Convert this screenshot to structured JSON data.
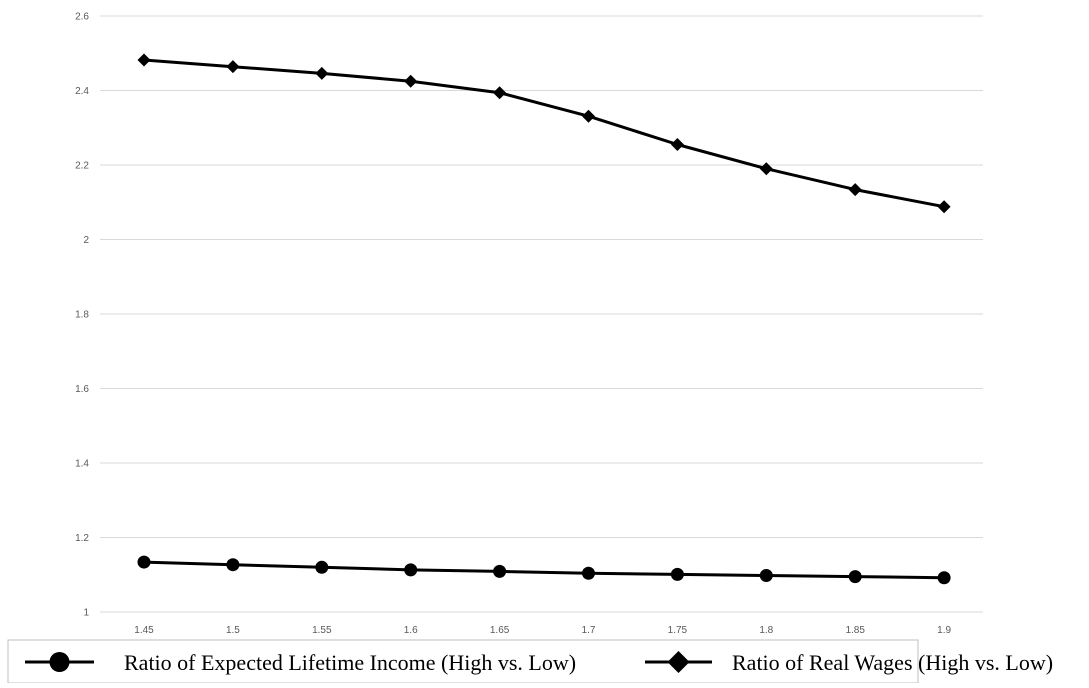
{
  "chart_data": {
    "type": "line",
    "title": "",
    "xlabel": "",
    "ylabel": "",
    "x": [
      1.45,
      1.5,
      1.55,
      1.6,
      1.65,
      1.7,
      1.75,
      1.8,
      1.85,
      1.9
    ],
    "x_tick_labels": [
      "1.45",
      "1.5",
      "1.55",
      "1.6",
      "1.65",
      "1.7",
      "1.75",
      "1.8",
      "1.85",
      "1.9"
    ],
    "ylim": [
      1,
      2.6
    ],
    "y_ticks": [
      1,
      1.2,
      1.4,
      1.6,
      1.8,
      2,
      2.2,
      2.4,
      2.6
    ],
    "y_tick_labels": [
      "1",
      "1.2",
      "1.4",
      "1.6",
      "1.8",
      "2",
      "2.2",
      "2.4",
      "2.6"
    ],
    "grid": true,
    "legend_position": "bottom",
    "series": [
      {
        "name": "Ratio of Expected Lifetime Income (High vs. Low)",
        "marker": "circle",
        "color": "#000000",
        "values": [
          1.134,
          1.127,
          1.12,
          1.113,
          1.109,
          1.104,
          1.101,
          1.098,
          1.095,
          1.092
        ]
      },
      {
        "name": "Ratio of Real Wages (High vs. Low)",
        "marker": "diamond",
        "color": "#000000",
        "values": [
          2.482,
          2.464,
          2.446,
          2.425,
          2.394,
          2.331,
          2.255,
          2.19,
          2.134,
          2.088
        ]
      }
    ]
  }
}
